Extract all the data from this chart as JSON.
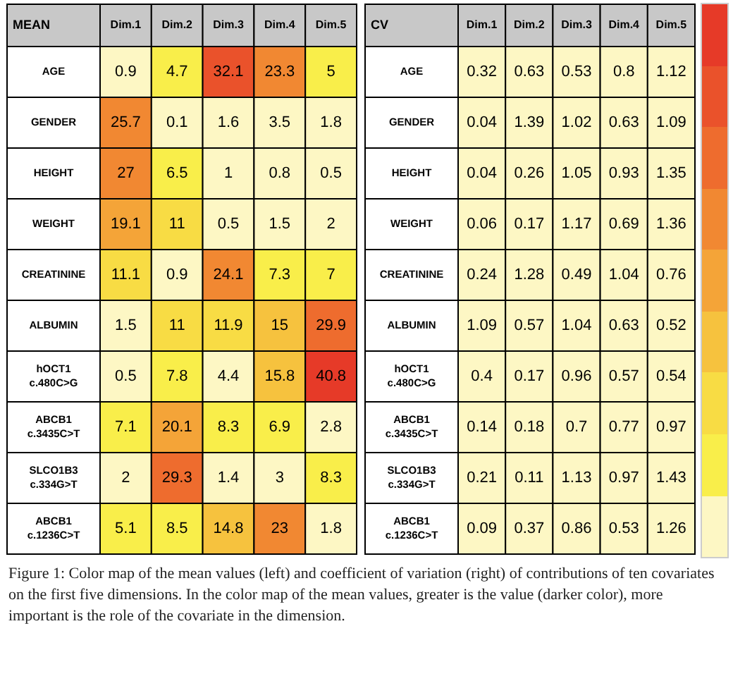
{
  "chart_data": [
    {
      "type": "heatmap",
      "title": "MEAN",
      "categories": [
        "Dim.1",
        "Dim.2",
        "Dim.3",
        "Dim.4",
        "Dim.5"
      ],
      "y_categories": [
        "AGE",
        "GENDER",
        "HEIGHT",
        "WEIGHT",
        "CREATININE",
        "ALBUMIN",
        "hOCT1\nc.480C>G",
        "ABCB1\nc.3435C>T",
        "SLCO1B3\nc.334G>T",
        "ABCB1\nc.1236C>T"
      ],
      "cells": [
        [
          0.9,
          4.7,
          32.1,
          23.3,
          5
        ],
        [
          25.7,
          0.1,
          1.6,
          3.5,
          1.8
        ],
        [
          27,
          6.5,
          1,
          0.8,
          0.5
        ],
        [
          19.1,
          11,
          0.5,
          1.5,
          2
        ],
        [
          11.1,
          0.9,
          24.1,
          7.3,
          7
        ],
        [
          1.5,
          11,
          11.9,
          15,
          29.9
        ],
        [
          0.5,
          7.8,
          4.4,
          15.8,
          40.8
        ],
        [
          7.1,
          20.1,
          8.3,
          6.9,
          2.8
        ],
        [
          2,
          29.3,
          1.4,
          3,
          8.3
        ],
        [
          5.1,
          8.5,
          14.8,
          23,
          1.8
        ]
      ],
      "data_labels": true,
      "annotations": [
        "Figure 1: Color map of the mean values (left) and coefficient of variation (right) of contributions of ten covariates on the first five dimensions. In the color map of the mean values, greater is the value (darker color), more important is the role of the covariate in the dimension."
      ]
    },
    {
      "type": "heatmap",
      "title": "CV",
      "categories": [
        "Dim.1",
        "Dim.2",
        "Dim.3",
        "Dim.4",
        "Dim.5"
      ],
      "y_categories": [
        "AGE",
        "GENDER",
        "HEIGHT",
        "WEIGHT",
        "CREATININE",
        "ALBUMIN",
        "hOCT1\nc.480C>G",
        "ABCB1\nc.3435C>T",
        "SLCO1B3\nc.334G>T",
        "ABCB1\nc.1236C>T"
      ],
      "cells": [
        [
          0.32,
          0.63,
          0.53,
          0.8,
          1.12
        ],
        [
          0.04,
          1.39,
          1.02,
          0.63,
          1.09
        ],
        [
          0.04,
          0.26,
          1.05,
          0.93,
          1.35
        ],
        [
          0.06,
          0.17,
          1.17,
          0.69,
          1.36
        ],
        [
          0.24,
          1.28,
          0.49,
          1.04,
          0.76
        ],
        [
          1.09,
          0.57,
          1.04,
          0.63,
          0.52
        ],
        [
          0.4,
          0.17,
          0.96,
          0.57,
          0.54
        ],
        [
          0.14,
          0.18,
          0.7,
          0.77,
          0.97
        ],
        [
          0.21,
          0.11,
          1.13,
          0.97,
          1.43
        ],
        [
          0.09,
          0.37,
          0.86,
          0.53,
          1.26
        ]
      ],
      "data_labels": true
    }
  ]
}
